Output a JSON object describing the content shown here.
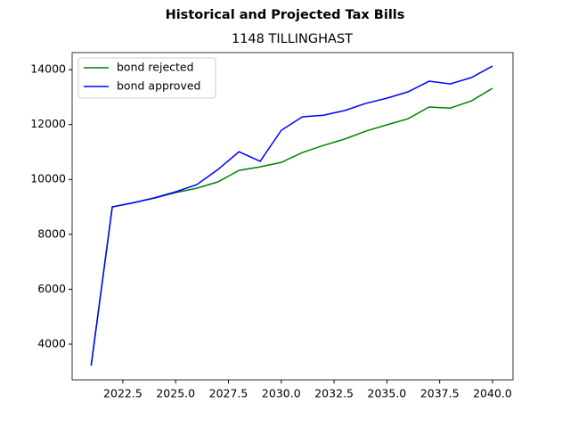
{
  "chart_data": {
    "type": "line",
    "suptitle": "Historical and Projected Tax Bills",
    "title": "1148 TILLINGHAST",
    "x": [
      2021,
      2022,
      2023,
      2024,
      2025,
      2026,
      2027,
      2028,
      2029,
      2030,
      2031,
      2032,
      2033,
      2034,
      2035,
      2036,
      2037,
      2038,
      2039,
      2040
    ],
    "series": [
      {
        "name": "bond rejected",
        "color": "#008000",
        "values": [
          3220,
          9000,
          9150,
          9320,
          9520,
          9680,
          9910,
          10330,
          10460,
          10620,
          10980,
          11240,
          11470,
          11760,
          11990,
          12210,
          12640,
          12600,
          12860,
          13320
        ]
      },
      {
        "name": "bond approved",
        "color": "#0000ff",
        "values": [
          3220,
          9000,
          9150,
          9330,
          9550,
          9810,
          10360,
          11010,
          10660,
          11790,
          12280,
          12340,
          12510,
          12770,
          12960,
          13190,
          13580,
          13480,
          13710,
          14130
        ]
      }
    ],
    "xlim": [
      2020.1,
      2040.97
    ],
    "ylim": [
      2700,
      14620
    ],
    "xticks": [
      2022.5,
      {
        "value": 2025,
        "label": "2025.0"
      },
      2027.5,
      {
        "value": 2030,
        "label": "2030.0"
      },
      2032.5,
      {
        "value": 2035,
        "label": "2035.0"
      },
      2037.5,
      {
        "value": 2040,
        "label": "2040.0"
      }
    ],
    "yticks": [
      4000,
      6000,
      8000,
      10000,
      12000,
      14000
    ],
    "legend": "upper left"
  }
}
